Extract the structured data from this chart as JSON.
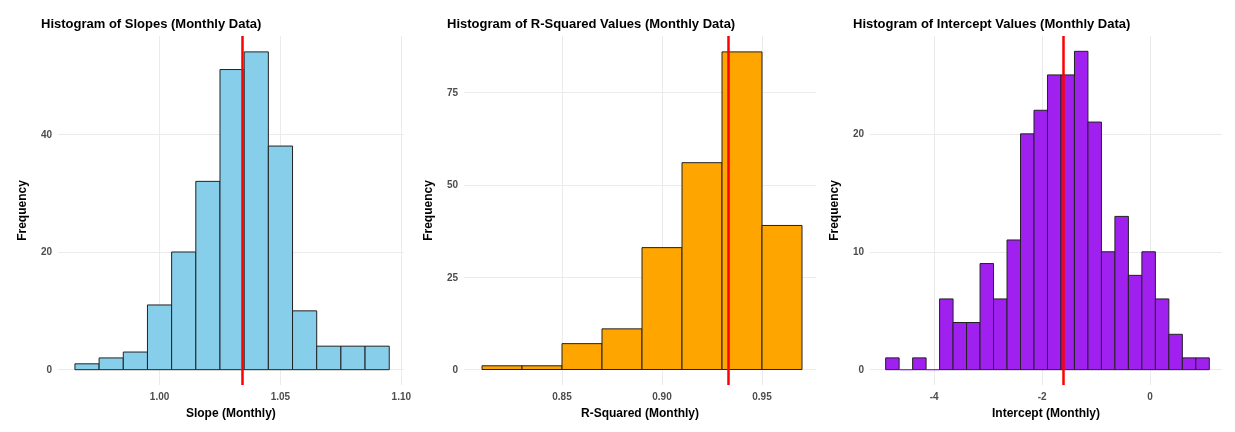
{
  "chart_data": [
    {
      "type": "histogram",
      "title": "Histogram of Slopes (Monthly Data)",
      "xlabel": "Slope (Monthly)",
      "ylabel": "Frequency",
      "color": "#87ceeb",
      "bins": [
        0.965,
        0.975,
        0.985,
        0.995,
        1.005,
        1.015,
        1.025,
        1.035,
        1.045,
        1.055,
        1.065,
        1.075,
        1.085,
        1.095
      ],
      "values": [
        1,
        2,
        3,
        11,
        20,
        32,
        51,
        54,
        38,
        10,
        4,
        4,
        4
      ],
      "xlim": [
        0.958,
        1.101
      ],
      "xticks": [
        {
          "value": 1.0,
          "label": "1.00"
        },
        1.05,
        {
          "value": 1.1,
          "label": "1.10"
        }
      ],
      "ylim": [
        -2.6,
        56.7
      ],
      "yticks": [
        0,
        20,
        40
      ],
      "grid": true,
      "ref_lines": [
        {
          "axis": "x",
          "value": 1.034,
          "color": "#ff0000"
        }
      ]
    },
    {
      "type": "histogram",
      "title": "Histogram of R-Squared Values (Monthly Data)",
      "xlabel": "R-Squared (Monthly)",
      "ylabel": "Frequency",
      "color": "#ffa500",
      "bins": [
        0.81,
        0.83,
        0.85,
        0.87,
        0.89,
        0.91,
        0.93,
        0.95,
        0.97
      ],
      "values": [
        1,
        1,
        7,
        11,
        33,
        56,
        86,
        39
      ],
      "xlim": [
        0.801,
        0.977
      ],
      "xticks": [
        0.85,
        {
          "value": 0.9,
          "label": "0.90"
        },
        0.95
      ],
      "ylim": [
        -4.2,
        90.3
      ],
      "yticks": [
        0,
        25,
        50,
        75
      ],
      "grid": true,
      "ref_lines": [
        {
          "axis": "x",
          "value": 0.933,
          "color": "#ff0000"
        }
      ]
    },
    {
      "type": "histogram",
      "title": "Histogram of Intercept Values (Monthly Data)",
      "xlabel": "Intercept (Monthly)",
      "ylabel": "Frequency",
      "color": "#a020f0",
      "bins": [
        -4.9,
        -4.65,
        -4.4,
        -4.15,
        -3.9,
        -3.65,
        -3.4,
        -3.15,
        -2.9,
        -2.65,
        -2.4,
        -2.15,
        -1.9,
        -1.65,
        -1.4,
        -1.15,
        -0.9,
        -0.65,
        -0.4,
        -0.15,
        0.1,
        0.35,
        0.6,
        0.85,
        1.1
      ],
      "values": [
        1,
        0,
        1,
        0,
        6,
        4,
        4,
        9,
        6,
        11,
        20,
        22,
        25,
        25,
        27,
        21,
        10,
        13,
        8,
        10,
        6,
        3,
        1,
        1
      ],
      "xlim": [
        -5.19,
        1.335
      ],
      "xticks": [
        -4,
        -2,
        0
      ],
      "ylim": [
        -1.3,
        28.3
      ],
      "yticks": [
        0,
        10,
        20
      ],
      "grid": true,
      "ref_lines": [
        {
          "axis": "x",
          "value": -1.6,
          "color": "#ff0000"
        }
      ]
    }
  ]
}
